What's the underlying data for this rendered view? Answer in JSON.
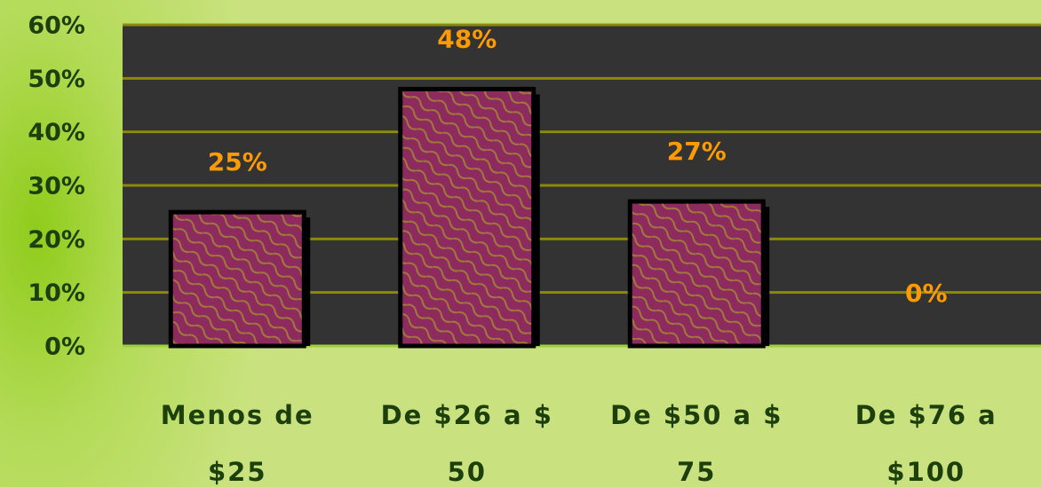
{
  "chart_data": {
    "type": "bar",
    "categories": [
      "Menos de $25",
      "De $26 a $ 50",
      "De $50 a $ 75",
      "De $76 a $100"
    ],
    "values": [
      25,
      48,
      27,
      0
    ],
    "value_labels": [
      "25%",
      "48%",
      "27%",
      "0%"
    ],
    "color": "#8e2b5e",
    "label_color": "#ff9a00",
    "ylim": [
      0,
      60
    ],
    "yticks": [
      {
        "value": 0,
        "label": "0%"
      },
      {
        "value": 10,
        "label": "10%"
      },
      {
        "value": 20,
        "label": "20%"
      },
      {
        "value": 30,
        "label": "30%"
      },
      {
        "value": 40,
        "label": "40%"
      },
      {
        "value": 50,
        "label": "50%"
      },
      {
        "value": 60,
        "label": "60%"
      }
    ],
    "grid": true
  }
}
